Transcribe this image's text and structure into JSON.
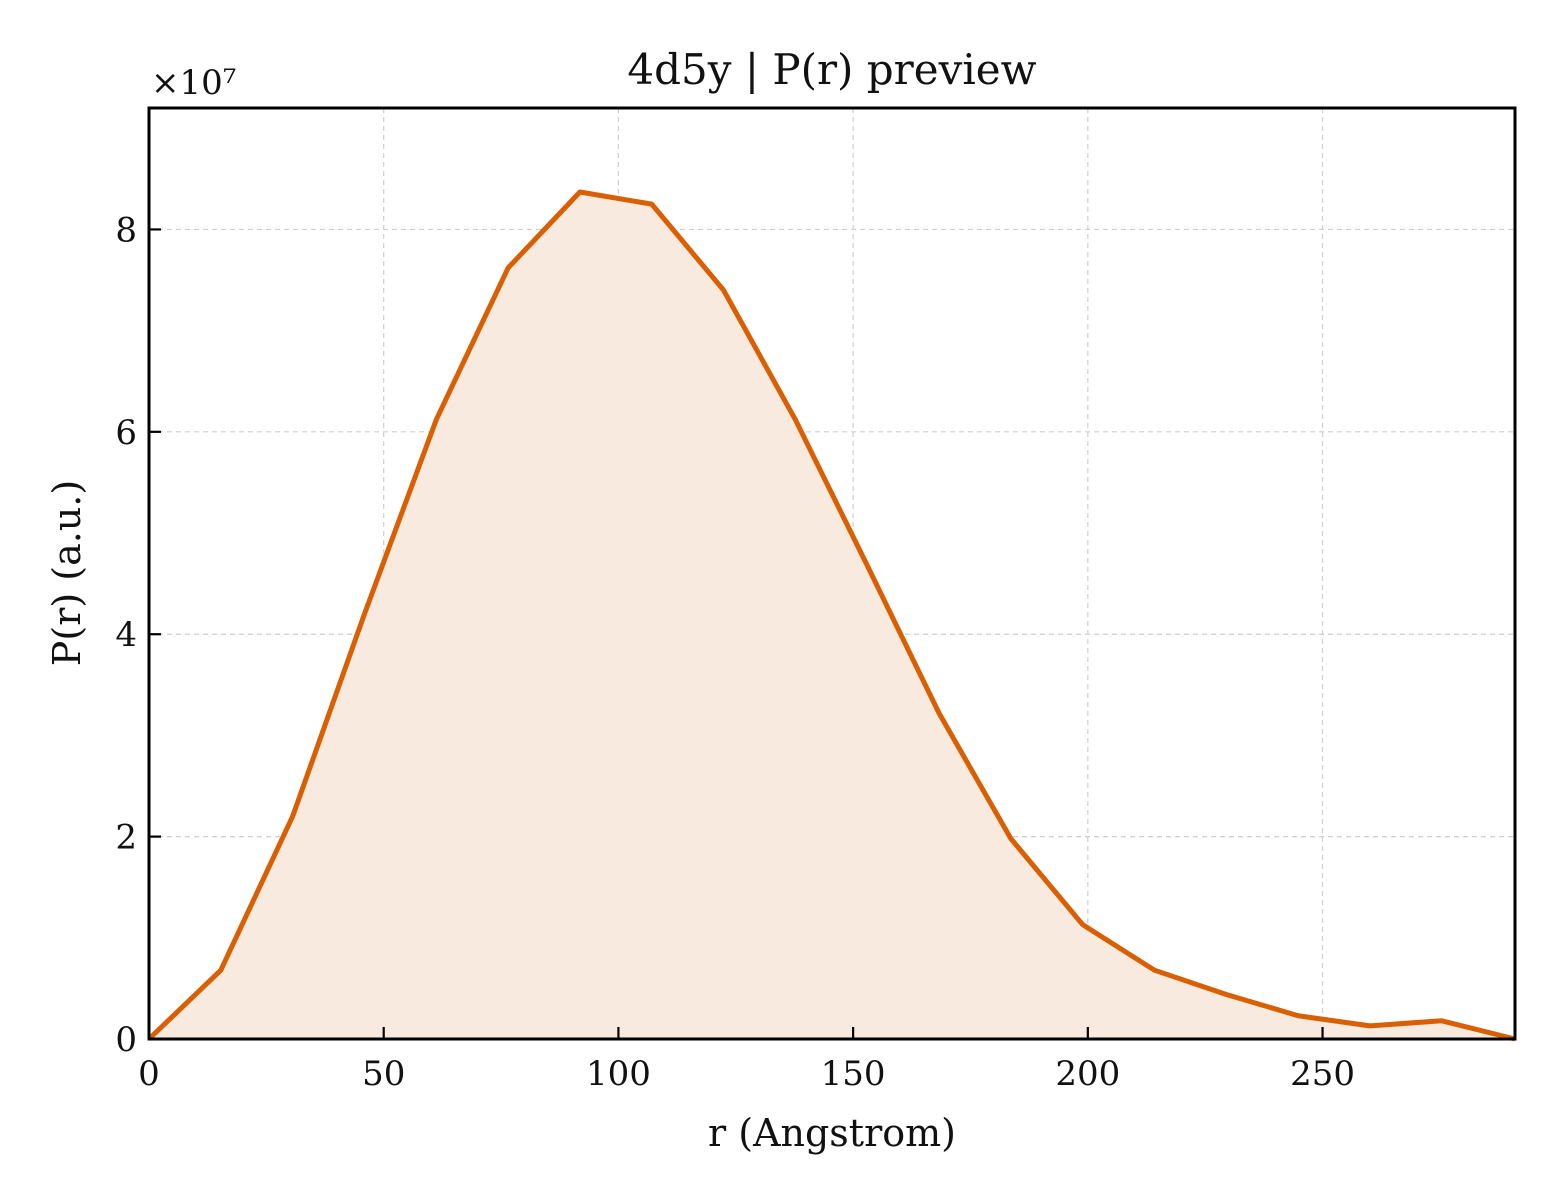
{
  "chart_data": {
    "type": "area",
    "title": "4d5y | P(r) preview",
    "xlabel": "r (Angstrom)",
    "ylabel": "P(r) (a.u.)",
    "y_multiplier_label": "×10⁷",
    "y_scale": 10000000,
    "xlim": [
      0,
      291
    ],
    "ylim": [
      0,
      9.2
    ],
    "xticks": [
      0,
      50,
      100,
      150,
      200,
      250
    ],
    "yticks": [
      0,
      2,
      4,
      6,
      8
    ],
    "grid": true,
    "line_color": "#d95f02",
    "fill_color": "#f9eadf",
    "series": [
      {
        "x": [
          0,
          15.3,
          30.6,
          45.9,
          61.2,
          76.5,
          91.8,
          107.1,
          122.4,
          137.7,
          153.0,
          168.3,
          183.6,
          198.9,
          214.2,
          229.5,
          244.8,
          260.1,
          275.4,
          291.0
        ],
        "y": [
          0.0,
          0.68,
          2.2,
          4.2,
          6.12,
          7.62,
          8.37,
          8.25,
          7.4,
          6.12,
          4.68,
          3.22,
          1.98,
          1.13,
          0.68,
          0.44,
          0.23,
          0.13,
          0.18,
          0.0
        ]
      }
    ]
  }
}
